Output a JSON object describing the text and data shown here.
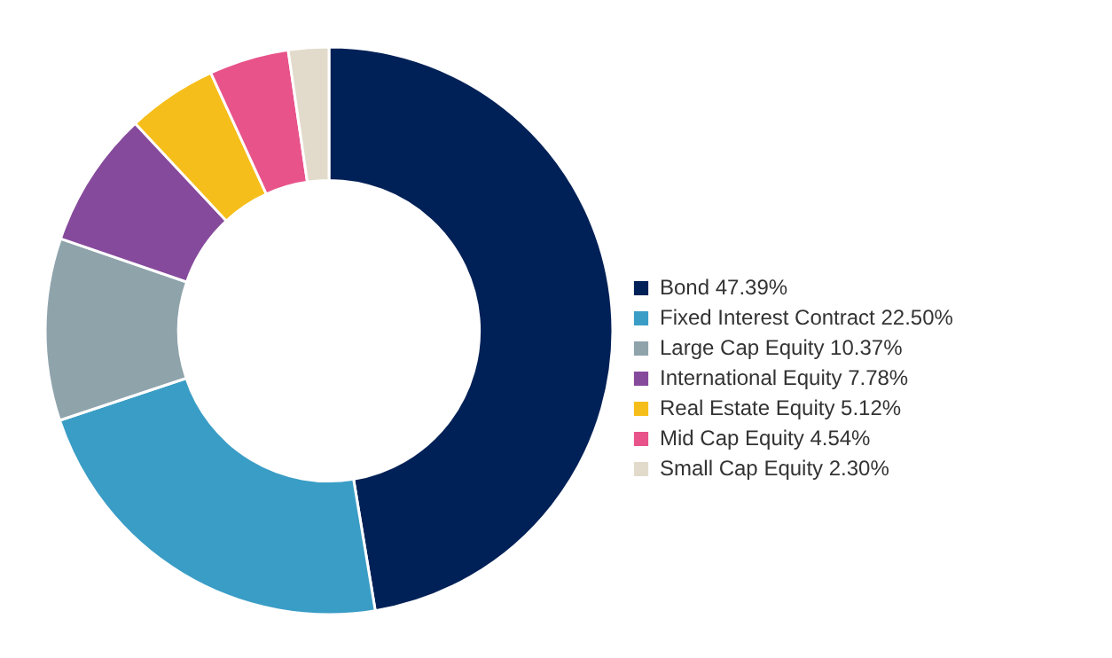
{
  "chart_data": {
    "type": "donut",
    "categories": [
      "Bond",
      "Fixed Interest Contract",
      "Large Cap Equity",
      "International Equity",
      "Real Estate Equity",
      "Mid Cap Equity",
      "Small Cap Equity"
    ],
    "values": [
      47.39,
      22.5,
      10.37,
      7.78,
      5.12,
      4.54,
      2.3
    ],
    "value_labels": [
      "47.39%",
      "22.50%",
      "10.37%",
      "7.78%",
      "5.12%",
      "4.54%",
      "2.30%"
    ],
    "colors": [
      "#002157",
      "#3a9dc6",
      "#8fa3ab",
      "#864a9c",
      "#f6be1a",
      "#e8538a",
      "#e2dbcb"
    ],
    "legend": "right"
  }
}
